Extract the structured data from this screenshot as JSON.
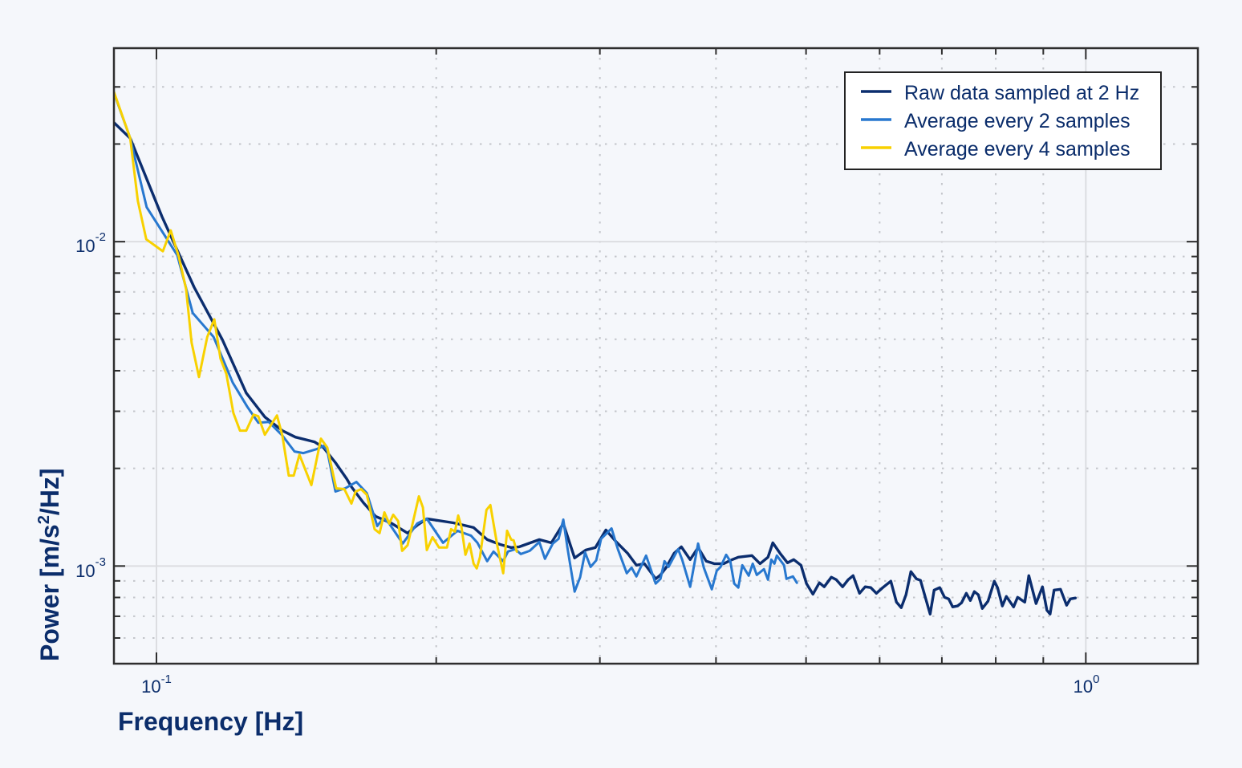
{
  "chart_data": {
    "type": "line",
    "title": "",
    "xlabel": "Frequency [Hz]",
    "ylabel": "Power [m/s^2/Hz]",
    "xscale": "log",
    "yscale": "log",
    "xlim": [
      0.09,
      1.32
    ],
    "ylim": [
      0.0005,
      0.0395
    ],
    "grid": true,
    "legend_position": "upper right",
    "x_major_ticks": [
      0.1,
      1
    ],
    "x_minor_ticks": [
      0.2,
      0.3,
      0.4,
      0.5,
      0.6,
      0.7,
      0.8,
      0.9
    ],
    "y_major_ticks": [
      0.001,
      0.01
    ],
    "y_minor_ticks": [
      0.0006,
      0.0007,
      0.0008,
      0.0009,
      0.002,
      0.003,
      0.004,
      0.005,
      0.006,
      0.007,
      0.008,
      0.009,
      0.02,
      0.03
    ],
    "x_tick_labels": [
      "10^-1",
      "10^0"
    ],
    "y_tick_labels": [
      "10^-3",
      "10^-2"
    ],
    "series": [
      {
        "name": "Raw data sampled at 2 Hz",
        "color": "#0b2d6e",
        "width": 3.4,
        "x": [
          0.09,
          0.0937,
          0.1014,
          0.1098,
          0.1177,
          0.1249,
          0.1308,
          0.1366,
          0.1411,
          0.1479,
          0.1512,
          0.1558,
          0.1602,
          0.1621,
          0.167,
          0.1721,
          0.1787,
          0.1863,
          0.1908,
          0.1954,
          0.2087,
          0.2142,
          0.2194,
          0.2269,
          0.2342,
          0.2408,
          0.2457,
          0.2582,
          0.266,
          0.274,
          0.2818,
          0.2897,
          0.2967,
          0.3045,
          0.3119,
          0.3213,
          0.3284,
          0.335,
          0.3445,
          0.3486,
          0.3535,
          0.3606,
          0.3671,
          0.3752,
          0.3827,
          0.3904,
          0.3983,
          0.4079,
          0.4144,
          0.4227,
          0.4373,
          0.4461,
          0.455,
          0.4605,
          0.4688,
          0.4775,
          0.485,
          0.4937,
          0.5006,
          0.5086,
          0.5167,
          0.523,
          0.5324,
          0.5388,
          0.5474,
          0.5551,
          0.5618,
          0.5708,
          0.5788,
          0.587,
          0.5952,
          0.6047,
          0.6169,
          0.6255,
          0.633,
          0.6405,
          0.6483,
          0.6573,
          0.6639,
          0.6719,
          0.68,
          0.6868,
          0.6964,
          0.7048,
          0.7119,
          0.719,
          0.7276,
          0.7349,
          0.7437,
          0.7511,
          0.7586,
          0.7662,
          0.7738,
          0.7847,
          0.7972,
          0.8035,
          0.8132,
          0.8213,
          0.8362,
          0.8445,
          0.8598,
          0.8683,
          0.884,
          0.8982,
          0.908,
          0.9153,
          0.9245,
          0.9393,
          0.9535,
          0.9625,
          0.9745
        ],
        "y": [
          0.0233,
          0.02083,
          0.01193,
          0.007234,
          0.004997,
          0.003415,
          0.00288,
          0.002615,
          0.002497,
          0.002414,
          0.00232,
          0.002083,
          0.001858,
          0.001755,
          0.001567,
          0.001423,
          0.001359,
          0.001263,
          0.001336,
          0.001399,
          0.001359,
          0.001336,
          0.001314,
          0.001206,
          0.001166,
          0.00114,
          0.001146,
          0.001206,
          0.001179,
          0.001352,
          0.001059,
          0.00112,
          0.00114,
          0.001292,
          0.001193,
          0.001095,
          0.001006,
          0.001017,
          0.000913,
          0.000939,
          0.000989,
          0.001095,
          0.001146,
          0.001047,
          0.00114,
          0.001035,
          0.001017,
          0.001017,
          0.001041,
          0.001065,
          0.001077,
          0.001017,
          0.001065,
          0.001179,
          0.001095,
          0.001023,
          0.001047,
          0.001006,
          0.000883,
          0.000819,
          0.000888,
          0.000863,
          0.000924,
          0.000908,
          0.000863,
          0.000908,
          0.000934,
          0.000824,
          0.000863,
          0.000858,
          0.000824,
          0.000858,
          0.000898,
          0.000774,
          0.000744,
          0.000815,
          0.000961,
          0.000913,
          0.000903,
          0.000801,
          0.000711,
          0.000843,
          0.000858,
          0.000801,
          0.000792,
          0.000748,
          0.000753,
          0.00077,
          0.000824,
          0.000783,
          0.000834,
          0.000815,
          0.00074,
          0.000779,
          0.000898,
          0.000858,
          0.000753,
          0.000806,
          0.000748,
          0.000801,
          0.000774,
          0.000934,
          0.000766,
          0.000863,
          0.000731,
          0.000711,
          0.000843,
          0.000848,
          0.000757,
          0.000792,
          0.000797
        ]
      },
      {
        "name": "Average every 2 samples",
        "color": "#2878cf",
        "width": 3.0,
        "x": [
          0.09,
          0.0937,
          0.0976,
          0.1053,
          0.1094,
          0.1152,
          0.1208,
          0.1252,
          0.1287,
          0.1321,
          0.1366,
          0.1408,
          0.1439,
          0.1488,
          0.1512,
          0.1527,
          0.1558,
          0.1596,
          0.1641,
          0.1684,
          0.1728,
          0.1755,
          0.178,
          0.1841,
          0.1908,
          0.1954,
          0.2034,
          0.2108,
          0.218,
          0.2215,
          0.2269,
          0.2305,
          0.2361,
          0.2389,
          0.2432,
          0.2466,
          0.2521,
          0.2582,
          0.2618,
          0.267,
          0.2708,
          0.274,
          0.2768,
          0.2818,
          0.2857,
          0.2892,
          0.2932,
          0.2973,
          0.3009,
          0.3088,
          0.3137,
          0.3207,
          0.3245,
          0.3284,
          0.3364,
          0.3445,
          0.3486,
          0.3521,
          0.3556,
          0.3642,
          0.3678,
          0.3752,
          0.3827,
          0.3881,
          0.3959,
          0.4007,
          0.4046,
          0.4102,
          0.4144,
          0.4185,
          0.4227,
          0.427,
          0.4338,
          0.4381,
          0.4425,
          0.4505,
          0.455,
          0.4587,
          0.4623,
          0.4651,
          0.4735,
          0.4763,
          0.484,
          0.4888
        ],
        "y": [
          0.0288,
          0.02083,
          0.01277,
          0.009078,
          0.006029,
          0.005085,
          0.003677,
          0.0031,
          0.002767,
          0.002783,
          0.002526,
          0.002255,
          0.002229,
          0.002294,
          0.002346,
          0.002268,
          0.001697,
          0.001736,
          0.001817,
          0.001678,
          0.001329,
          0.001407,
          0.001352,
          0.001173,
          0.001352,
          0.001399,
          0.001179,
          0.001284,
          0.001241,
          0.001179,
          0.001035,
          0.001108,
          0.001035,
          0.001108,
          0.001127,
          0.001089,
          0.001114,
          0.001186,
          0.001053,
          0.001173,
          0.001213,
          0.00139,
          0.00114,
          0.000834,
          0.000924,
          0.001102,
          0.000994,
          0.001041,
          0.001213,
          0.001306,
          0.001127,
          0.00095,
          0.000989,
          0.000929,
          0.001077,
          0.000883,
          0.000913,
          0.001035,
          0.000994,
          0.001127,
          0.001047,
          0.000863,
          0.001173,
          0.000989,
          0.000848,
          0.000967,
          0.000994,
          0.001083,
          0.001035,
          0.000883,
          0.000858,
          0.001006,
          0.000934,
          0.001017,
          0.000939,
          0.000978,
          0.000908,
          0.001047,
          0.001017,
          0.001077,
          0.001006,
          0.000913,
          0.000929,
          0.000888
        ]
      },
      {
        "name": "Average every 4 samples",
        "color": "#f8d100",
        "width": 3.0,
        "x": [
          0.09,
          0.0937,
          0.0955,
          0.0975,
          0.1016,
          0.1036,
          0.1057,
          0.1076,
          0.1091,
          0.1111,
          0.1134,
          0.1154,
          0.1172,
          0.1189,
          0.121,
          0.123,
          0.1249,
          0.1272,
          0.1287,
          0.1308,
          0.1348,
          0.1366,
          0.1388,
          0.1405,
          0.1425,
          0.1468,
          0.1503,
          0.1527,
          0.1561,
          0.1593,
          0.1621,
          0.1638,
          0.166,
          0.1684,
          0.1717,
          0.1738,
          0.1759,
          0.178,
          0.1798,
          0.182,
          0.1838,
          0.1863,
          0.1916,
          0.1935,
          0.1954,
          0.1982,
          0.2014,
          0.2054,
          0.2075,
          0.2095,
          0.2112,
          0.2129,
          0.215,
          0.2172,
          0.2194,
          0.2211,
          0.2229,
          0.2265,
          0.2287,
          0.2305,
          0.2328,
          0.2361,
          0.2384,
          0.2408,
          0.2423,
          0.2442
        ],
        "y": [
          0.02895,
          0.02083,
          0.01336,
          0.01017,
          0.009341,
          0.01083,
          0.00898,
          0.007151,
          0.004884,
          0.003826,
          0.005085,
          0.005761,
          0.004361,
          0.003914,
          0.002962,
          0.002615,
          0.002615,
          0.002929,
          0.002895,
          0.00254,
          0.002912,
          0.002526,
          0.001901,
          0.001901,
          0.002204,
          0.001776,
          0.00247,
          0.00232,
          0.001736,
          0.001726,
          0.001558,
          0.001697,
          0.001726,
          0.001659,
          0.001299,
          0.001263,
          0.001463,
          0.001352,
          0.001439,
          0.001375,
          0.001114,
          0.001159,
          0.00164,
          0.001515,
          0.00112,
          0.001227,
          0.00114,
          0.00114,
          0.001299,
          0.001277,
          0.001431,
          0.001321,
          0.001083,
          0.001173,
          0.001017,
          0.000983,
          0.001065,
          0.001489,
          0.001541,
          0.001352,
          0.001146,
          0.00095,
          0.001284,
          0.001206,
          0.0012,
          0.001108
        ]
      }
    ]
  },
  "axes": {
    "xlabel": "Frequency [Hz]",
    "ylabel_main": "Power [m/s",
    "ylabel_sup": "2",
    "ylabel_end": "/Hz]",
    "x_ticks": [
      {
        "value": 0.1,
        "base": "10",
        "exp": "-1"
      },
      {
        "value": 1,
        "base": "10",
        "exp": "0"
      }
    ],
    "y_ticks": [
      {
        "value": 0.01,
        "base": "10",
        "exp": "-2"
      },
      {
        "value": 0.001,
        "base": "10",
        "exp": "-3"
      }
    ]
  },
  "legend": {
    "items": [
      {
        "label": "Raw data sampled at 2 Hz",
        "color": "#0b2d6e"
      },
      {
        "label": "Average every 2 samples",
        "color": "#2878cf"
      },
      {
        "label": "Average every 4 samples",
        "color": "#f8d100"
      }
    ]
  },
  "colors": {
    "background": "#f5f7fb",
    "text": "#0b2d6b",
    "frame": "#2e2e2e",
    "grid_major": "#dcdde1",
    "grid_minor": "#c4c6cb"
  }
}
